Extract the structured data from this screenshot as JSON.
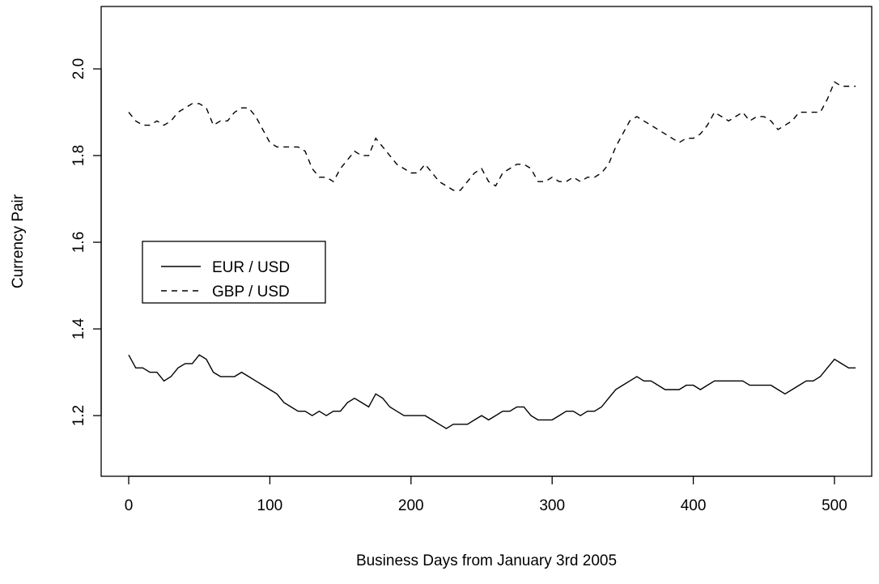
{
  "chart_data": {
    "type": "line",
    "x_label": "Business Days from January 3rd 2005",
    "y_label": "Currency Pair",
    "x": [
      0,
      5,
      10,
      15,
      20,
      25,
      30,
      35,
      40,
      45,
      50,
      55,
      60,
      65,
      70,
      75,
      80,
      85,
      90,
      95,
      100,
      105,
      110,
      115,
      120,
      125,
      130,
      135,
      140,
      145,
      150,
      155,
      160,
      165,
      170,
      175,
      180,
      185,
      190,
      195,
      200,
      205,
      210,
      215,
      220,
      225,
      230,
      235,
      240,
      245,
      250,
      255,
      260,
      265,
      270,
      275,
      280,
      285,
      290,
      295,
      300,
      305,
      310,
      315,
      320,
      325,
      330,
      335,
      340,
      345,
      350,
      355,
      360,
      365,
      370,
      375,
      380,
      385,
      390,
      395,
      400,
      405,
      410,
      415,
      420,
      425,
      430,
      435,
      440,
      445,
      450,
      455,
      460,
      465,
      470,
      475,
      480,
      485,
      490,
      495,
      500,
      505,
      510,
      515
    ],
    "series": [
      {
        "name": "EUR / USD",
        "color": "#000000",
        "line_style": "solid",
        "values": [
          1.34,
          1.31,
          1.31,
          1.3,
          1.3,
          1.28,
          1.29,
          1.31,
          1.32,
          1.32,
          1.34,
          1.33,
          1.3,
          1.29,
          1.29,
          1.29,
          1.3,
          1.29,
          1.28,
          1.27,
          1.26,
          1.25,
          1.23,
          1.22,
          1.21,
          1.21,
          1.2,
          1.21,
          1.2,
          1.21,
          1.21,
          1.23,
          1.24,
          1.23,
          1.22,
          1.25,
          1.24,
          1.22,
          1.21,
          1.2,
          1.2,
          1.2,
          1.2,
          1.19,
          1.18,
          1.17,
          1.18,
          1.18,
          1.18,
          1.19,
          1.2,
          1.19,
          1.2,
          1.21,
          1.21,
          1.22,
          1.22,
          1.2,
          1.19,
          1.19,
          1.19,
          1.2,
          1.21,
          1.21,
          1.2,
          1.21,
          1.21,
          1.22,
          1.24,
          1.26,
          1.27,
          1.28,
          1.29,
          1.28,
          1.28,
          1.27,
          1.26,
          1.26,
          1.26,
          1.27,
          1.27,
          1.26,
          1.27,
          1.28,
          1.28,
          1.28,
          1.28,
          1.28,
          1.27,
          1.27,
          1.27,
          1.27,
          1.26,
          1.25,
          1.26,
          1.27,
          1.28,
          1.28,
          1.29,
          1.31,
          1.33,
          1.32,
          1.31,
          1.31
        ]
      },
      {
        "name": "GBP / USD",
        "color": "#000000",
        "line_style": "dashed",
        "values": [
          1.9,
          1.88,
          1.87,
          1.87,
          1.88,
          1.87,
          1.88,
          1.9,
          1.91,
          1.92,
          1.92,
          1.91,
          1.87,
          1.88,
          1.88,
          1.9,
          1.91,
          1.91,
          1.89,
          1.86,
          1.83,
          1.82,
          1.82,
          1.82,
          1.82,
          1.81,
          1.77,
          1.75,
          1.75,
          1.74,
          1.77,
          1.79,
          1.81,
          1.8,
          1.8,
          1.84,
          1.82,
          1.8,
          1.78,
          1.77,
          1.76,
          1.76,
          1.78,
          1.76,
          1.74,
          1.73,
          1.72,
          1.72,
          1.74,
          1.76,
          1.77,
          1.74,
          1.73,
          1.76,
          1.77,
          1.78,
          1.78,
          1.77,
          1.74,
          1.74,
          1.75,
          1.74,
          1.74,
          1.75,
          1.74,
          1.75,
          1.75,
          1.76,
          1.78,
          1.82,
          1.85,
          1.88,
          1.89,
          1.88,
          1.87,
          1.86,
          1.85,
          1.84,
          1.83,
          1.84,
          1.84,
          1.85,
          1.87,
          1.9,
          1.89,
          1.88,
          1.89,
          1.9,
          1.88,
          1.89,
          1.89,
          1.88,
          1.86,
          1.87,
          1.88,
          1.9,
          1.9,
          1.9,
          1.9,
          1.93,
          1.97,
          1.96,
          1.96,
          1.96
        ]
      }
    ],
    "xlim": [
      -19.5,
      526.4
    ],
    "ylim": [
      1.06,
      2.144
    ],
    "xticks": [
      0,
      100,
      200,
      300,
      400,
      500
    ],
    "yticks": [
      1.2,
      1.4,
      1.6,
      1.8,
      {
        "value": 2,
        "label": "2.0"
      }
    ],
    "grid": false,
    "legend": "center-left"
  }
}
